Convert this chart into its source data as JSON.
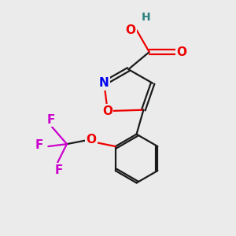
{
  "background_color": "#ebebeb",
  "bond_color": "#1a1a1a",
  "nitrogen_color": "#0000ee",
  "oxygen_color": "#ee0000",
  "fluorine_color": "#cc00cc",
  "hydrogen_color": "#2d8080",
  "lw": 1.6,
  "fs": 11,
  "xlim": [
    0,
    10
  ],
  "ylim": [
    0,
    10
  ]
}
